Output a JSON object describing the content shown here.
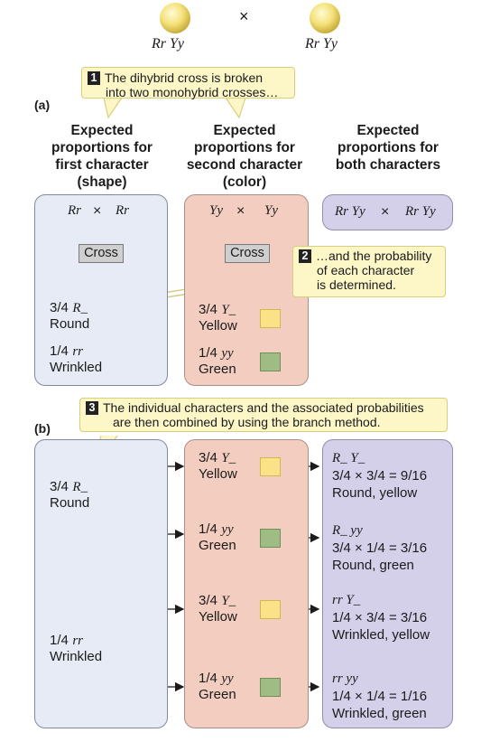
{
  "parents": {
    "left_genotype": "Rr Yy",
    "right_genotype": "Rr Yy",
    "cross_symbol": "×"
  },
  "callouts": {
    "c1_num": "1",
    "c1_line1": "The dihybrid cross is broken",
    "c1_line2": "into two monohybrid crosses…",
    "c2_num": "2",
    "c2_line1": "…and the probability",
    "c2_line2": "of each character",
    "c2_line3": "is determined.",
    "c3_num": "3",
    "c3_line1": "The individual characters and the associated probabilities",
    "c3_line2": "are then combined by using the branch method."
  },
  "section_labels": {
    "a": "(a)",
    "b": "(b)"
  },
  "headers": {
    "col1": [
      "Expected",
      "proportions for",
      "first character",
      "(shape)"
    ],
    "col2": [
      "Expected",
      "proportions for",
      "second character",
      "(color)"
    ],
    "col3": [
      "Expected",
      "proportions for",
      "both characters"
    ]
  },
  "part_a": {
    "shape_cross": {
      "left": "Rr",
      "x": "×",
      "right": "Rr",
      "box": "Cross"
    },
    "color_cross": {
      "left": "Yy",
      "x": "×",
      "right": "Yy",
      "box": "Cross"
    },
    "both_cross": {
      "left": "Rr Yy",
      "x": "×",
      "right": "Rr Yy"
    },
    "shape_results": [
      {
        "fraction": "3/4",
        "genotype": "R_",
        "label": "Round"
      },
      {
        "fraction": "1/4",
        "genotype": "rr",
        "label": "Wrinkled"
      }
    ],
    "color_results": [
      {
        "fraction": "3/4",
        "genotype": "Y_",
        "label": "Yellow"
      },
      {
        "fraction": "1/4",
        "genotype": "yy",
        "label": "Green"
      }
    ]
  },
  "part_b": {
    "shape": [
      {
        "fraction": "3/4",
        "genotype": "R_",
        "label": "Round"
      },
      {
        "fraction": "1/4",
        "genotype": "rr",
        "label": "Wrinkled"
      }
    ],
    "color": [
      {
        "fraction": "3/4",
        "genotype": "Y_",
        "label": "Yellow"
      },
      {
        "fraction": "1/4",
        "genotype": "yy",
        "label": "Green"
      },
      {
        "fraction": "3/4",
        "genotype": "Y_",
        "label": "Yellow"
      },
      {
        "fraction": "1/4",
        "genotype": "yy",
        "label": "Green"
      }
    ],
    "combined": [
      {
        "genotype": "R_ Y_",
        "calc": "3/4 × 3/4 = 9/16",
        "label": "Round, yellow"
      },
      {
        "genotype": "R_ yy",
        "calc": "3/4 × 1/4 = 3/16",
        "label": "Round, green"
      },
      {
        "genotype": "rr Y_",
        "calc": "1/4 × 3/4 = 3/16",
        "label": "Wrinkled, yellow"
      },
      {
        "genotype": "rr yy",
        "calc": "1/4 × 1/4 = 1/16",
        "label": "Wrinkled, green"
      }
    ]
  },
  "colors": {
    "shape_panel": "#e6ebf5",
    "color_panel": "#f3cdbf",
    "combined_panel": "#d4d0ea",
    "callout": "#fdf6c7",
    "yellow_square": "#fbe289",
    "green_square": "#9ebc84"
  },
  "icons": [
    "round-pea-icon",
    "wrinkled-pea-icon",
    "yellow-square-icon",
    "green-square-icon",
    "arrow-icon"
  ]
}
